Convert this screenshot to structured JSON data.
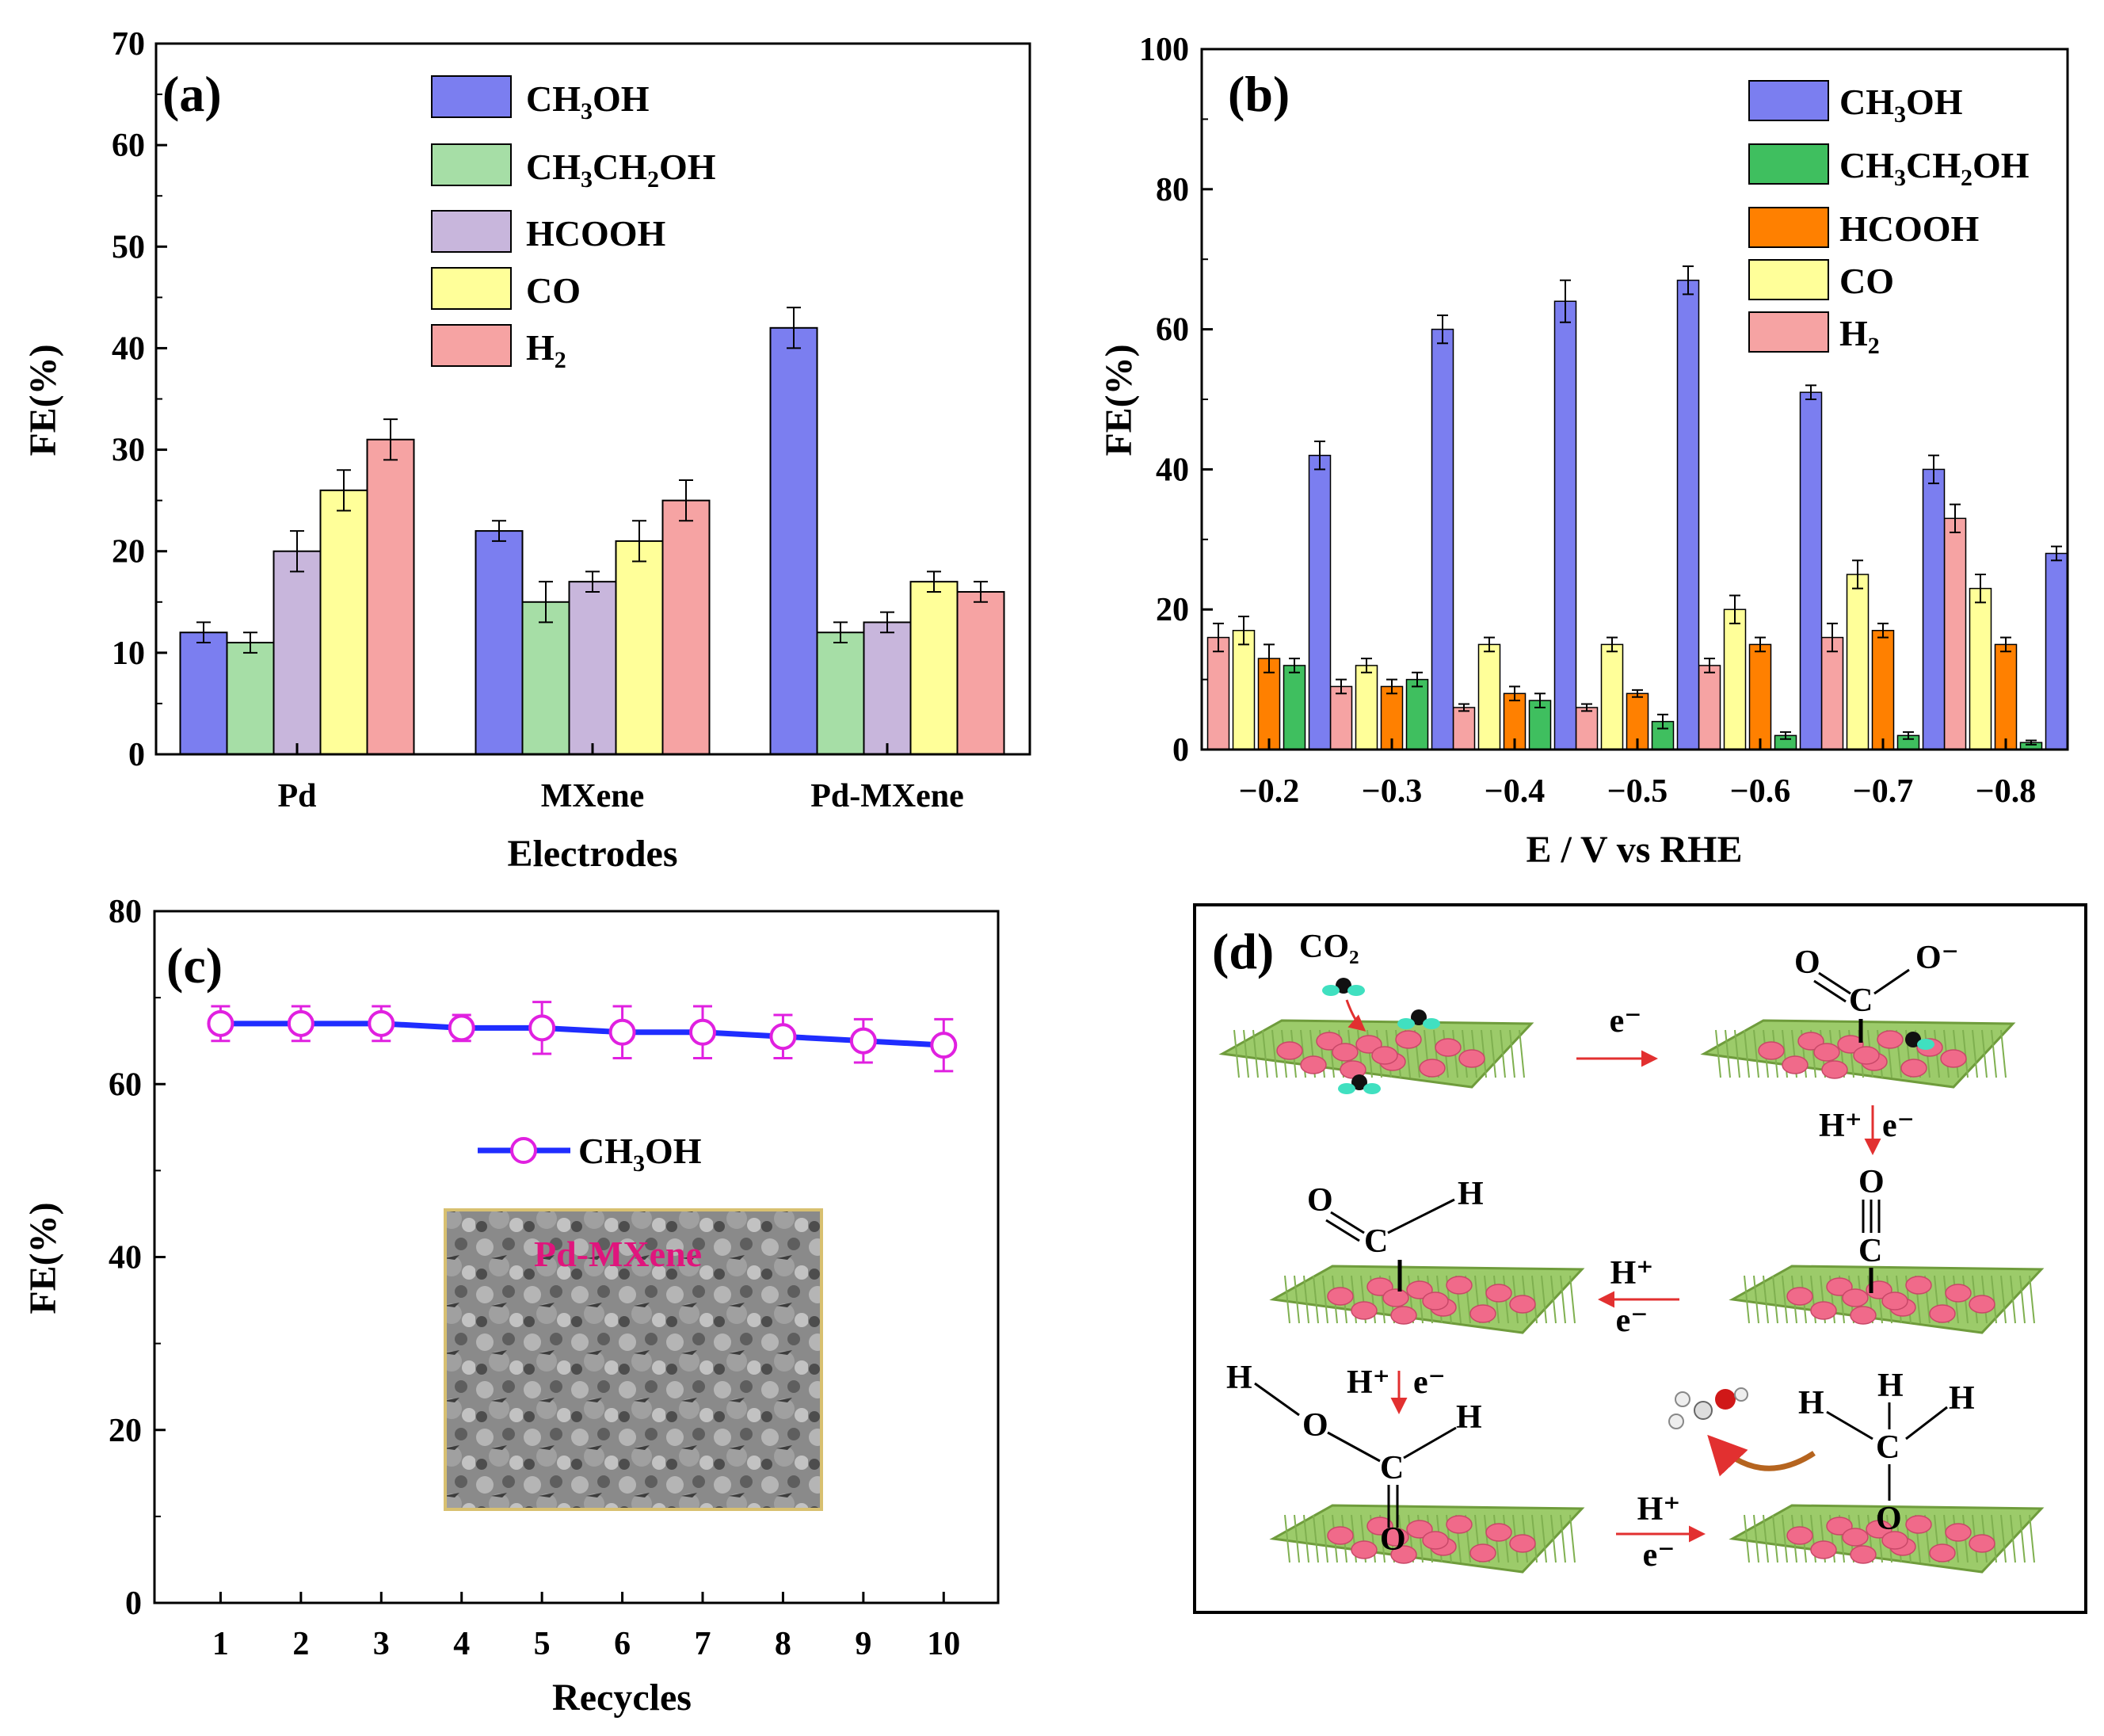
{
  "colors": {
    "CH3OH_a": "#7b7ef0",
    "CH3CH2OH_a": "#a6dea6",
    "HCOOH_a": "#c8b6dc",
    "CO_a": "#ffff99",
    "H2_a": "#f6a3a3",
    "CH3OH_b": "#7b7ef0",
    "CH3CH2OH_b": "#3fbf5f",
    "HCOOH_b": "#ff8000",
    "CO_b": "#ffff99",
    "H2_b": "#f6a3a3",
    "line_c": "#1f2dff",
    "marker_c": "#e020e0",
    "inset_label": "#e0157d",
    "arrow": "#e23030"
  },
  "chart_data": [
    {
      "panel": "(a)",
      "type": "bar",
      "categories": [
        "Pd",
        "MXene",
        "Pd-MXene"
      ],
      "xlabel": "Electrodes",
      "ylabel": "FE(%)",
      "ylim": [
        0,
        70
      ],
      "yticks": [
        "0",
        "10",
        "20",
        "30",
        "40",
        "50",
        "60",
        "70"
      ],
      "legend_position": "top-center",
      "series": [
        {
          "name": "CH3OH",
          "label_main": "CH",
          "label_parts": [
            [
              "CH",
              ""
            ],
            [
              "3",
              "sub"
            ],
            [
              "OH",
              ""
            ]
          ],
          "values": [
            12,
            22,
            42
          ],
          "errors": [
            1,
            1,
            2
          ]
        },
        {
          "name": "CH3CH2OH",
          "label_parts": [
            [
              "CH",
              ""
            ],
            [
              "3",
              "sub"
            ],
            [
              "CH",
              ""
            ],
            [
              "2",
              "sub"
            ],
            [
              "OH",
              ""
            ]
          ],
          "values": [
            11,
            15,
            12
          ],
          "errors": [
            1,
            2,
            1
          ]
        },
        {
          "name": "HCOOH",
          "label_parts": [
            [
              "HCOOH",
              ""
            ]
          ],
          "values": [
            20,
            17,
            13
          ],
          "errors": [
            2,
            1,
            1
          ]
        },
        {
          "name": "CO",
          "label_parts": [
            [
              "CO",
              ""
            ]
          ],
          "values": [
            26,
            21,
            17
          ],
          "errors": [
            2,
            2,
            1
          ]
        },
        {
          "name": "H2",
          "label_parts": [
            [
              "H",
              ""
            ],
            [
              "2",
              "sub"
            ]
          ],
          "values": [
            31,
            25,
            16
          ],
          "errors": [
            2,
            2,
            1
          ]
        }
      ]
    },
    {
      "panel": "(b)",
      "type": "bar",
      "categories": [
        "−0.2",
        "−0.3",
        "−0.4",
        "−0.5",
        "−0.6",
        "−0.7",
        "−0.8"
      ],
      "xlabel": "E / V vs RHE",
      "ylabel": "FE(%)",
      "ylim": [
        0,
        100
      ],
      "yticks": [
        "0",
        "20",
        "40",
        "60",
        "80",
        "100"
      ],
      "legend_position": "top-right",
      "legend_order": [
        "CH3OH",
        "CH3CH2OH",
        "HCOOH",
        "CO",
        "H2"
      ],
      "series": [
        {
          "name": "H2",
          "label_parts": [
            [
              "H",
              ""
            ],
            [
              "2",
              "sub"
            ]
          ],
          "values": [
            16,
            9,
            6,
            6,
            12,
            16,
            33
          ],
          "errors": [
            2,
            1,
            0.5,
            0.5,
            1,
            2,
            2
          ]
        },
        {
          "name": "CO",
          "label_parts": [
            [
              "CO",
              ""
            ]
          ],
          "values": [
            17,
            12,
            15,
            15,
            20,
            25,
            23
          ],
          "errors": [
            2,
            1,
            1,
            1,
            2,
            2,
            2
          ]
        },
        {
          "name": "HCOOH",
          "label_parts": [
            [
              "HCOOH",
              ""
            ]
          ],
          "values": [
            13,
            9,
            8,
            8,
            15,
            17,
            15
          ],
          "errors": [
            2,
            1,
            1,
            0.5,
            1,
            1,
            1
          ]
        },
        {
          "name": "CH3CH2OH",
          "label_parts": [
            [
              "CH",
              ""
            ],
            [
              "3",
              "sub"
            ],
            [
              "CH",
              ""
            ],
            [
              "2",
              "sub"
            ],
            [
              "OH",
              ""
            ]
          ],
          "values": [
            12,
            10,
            7,
            4,
            2,
            2,
            1
          ],
          "errors": [
            1,
            1,
            1,
            1,
            0.5,
            0.5,
            0.3
          ]
        },
        {
          "name": "CH3OH",
          "label_parts": [
            [
              "CH",
              ""
            ],
            [
              "3",
              "sub"
            ],
            [
              "OH",
              ""
            ]
          ],
          "values": [
            42,
            60,
            64,
            67,
            51,
            40,
            28
          ],
          "errors": [
            2,
            2,
            3,
            2,
            1,
            2,
            1
          ]
        }
      ]
    },
    {
      "panel": "(c)",
      "type": "line",
      "x": [
        1,
        2,
        3,
        4,
        5,
        6,
        7,
        8,
        9,
        10
      ],
      "xticks": [
        "1",
        "2",
        "3",
        "4",
        "5",
        "6",
        "7",
        "8",
        "9",
        "10"
      ],
      "xlabel": "Recycles",
      "ylabel": "FE(%)",
      "ylim": [
        0,
        80
      ],
      "xlim": [
        0,
        10.5
      ],
      "yticks": [
        "0",
        "20",
        "40",
        "60",
        "80"
      ],
      "legend_position": "center",
      "series": [
        {
          "name": "CH3OH",
          "label_parts": [
            [
              "CH",
              ""
            ],
            [
              "3",
              "sub"
            ],
            [
              "OH",
              ""
            ]
          ],
          "values": [
            67,
            67,
            67,
            66.5,
            66.5,
            66,
            66,
            65.5,
            65,
            64.5
          ],
          "errors": [
            2,
            2,
            2,
            1.5,
            3,
            3,
            3,
            2.5,
            2.5,
            3
          ]
        }
      ],
      "inset_label": "Pd-MXene"
    }
  ],
  "panel_d": {
    "label": "(d)",
    "co2": "CO₂",
    "e_minus": "e⁻",
    "h_plus": "H⁺",
    "o": "O",
    "o_minus": "O⁻",
    "c": "C",
    "h": "H"
  }
}
